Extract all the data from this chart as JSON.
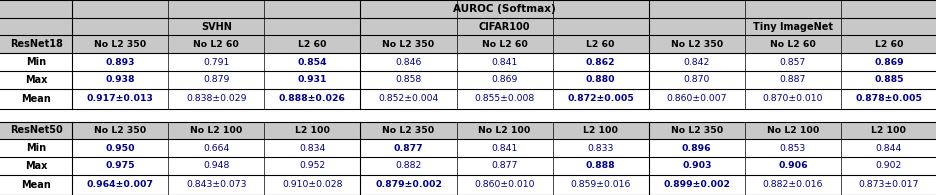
{
  "title": "AUROC (Softmax)",
  "sections": [
    "SVHN",
    "CIFAR100",
    "Tiny ImageNet"
  ],
  "resnet18": {
    "label": "ResNet18",
    "header_cols": [
      "No L2 350",
      "No L2 60",
      "L2 60",
      "No L2 350",
      "No L2 60",
      "L2 60",
      "No L2 350",
      "No L2 60",
      "L2 60"
    ],
    "rows": {
      "Min": [
        "0.893",
        "0.791",
        "0.854",
        "0.846",
        "0.841",
        "0.862",
        "0.842",
        "0.857",
        "0.869"
      ],
      "Max": [
        "0.938",
        "0.879",
        "0.931",
        "0.858",
        "0.869",
        "0.880",
        "0.870",
        "0.887",
        "0.885"
      ],
      "Mean": [
        "0.917±0.013",
        "0.838±0.029",
        "0.888±0.026",
        "0.852±0.004",
        "0.855±0.008",
        "0.872±0.005",
        "0.860±0.007",
        "0.870±0.010",
        "0.878±0.005"
      ]
    },
    "bold_cols": {
      "Min": [
        0,
        2,
        5,
        8
      ],
      "Max": [
        0,
        2,
        5,
        8
      ],
      "Mean": [
        0,
        2,
        5,
        8
      ]
    }
  },
  "resnet50": {
    "label": "ResNet50",
    "header_cols": [
      "No L2 350",
      "No L2 100",
      "L2 100",
      "No L2 350",
      "No L2 100",
      "L2 100",
      "No L2 350",
      "No L2 100",
      "L2 100"
    ],
    "rows": {
      "Min": [
        "0.950",
        "0.664",
        "0.834",
        "0.877",
        "0.841",
        "0.833",
        "0.896",
        "0.853",
        "0.844"
      ],
      "Max": [
        "0.975",
        "0.948",
        "0.952",
        "0.882",
        "0.877",
        "0.888",
        "0.903",
        "0.906",
        "0.902"
      ],
      "Mean": [
        "0.964±0.007",
        "0.843±0.073",
        "0.910±0.028",
        "0.879±0.002",
        "0.860±0.010",
        "0.859±0.016",
        "0.899±0.002",
        "0.882±0.016",
        "0.873±0.017"
      ]
    },
    "bold_cols": {
      "Min": [
        0,
        3,
        6
      ],
      "Max": [
        0,
        5,
        6,
        7
      ],
      "Mean": [
        0,
        3,
        6
      ]
    }
  },
  "header_bg": "#C8C8C8",
  "cell_bg": "#FFFFFF",
  "border_color": "#000000",
  "font_size": 7.0,
  "figsize": [
    9.37,
    1.95
  ],
  "dpi": 100
}
